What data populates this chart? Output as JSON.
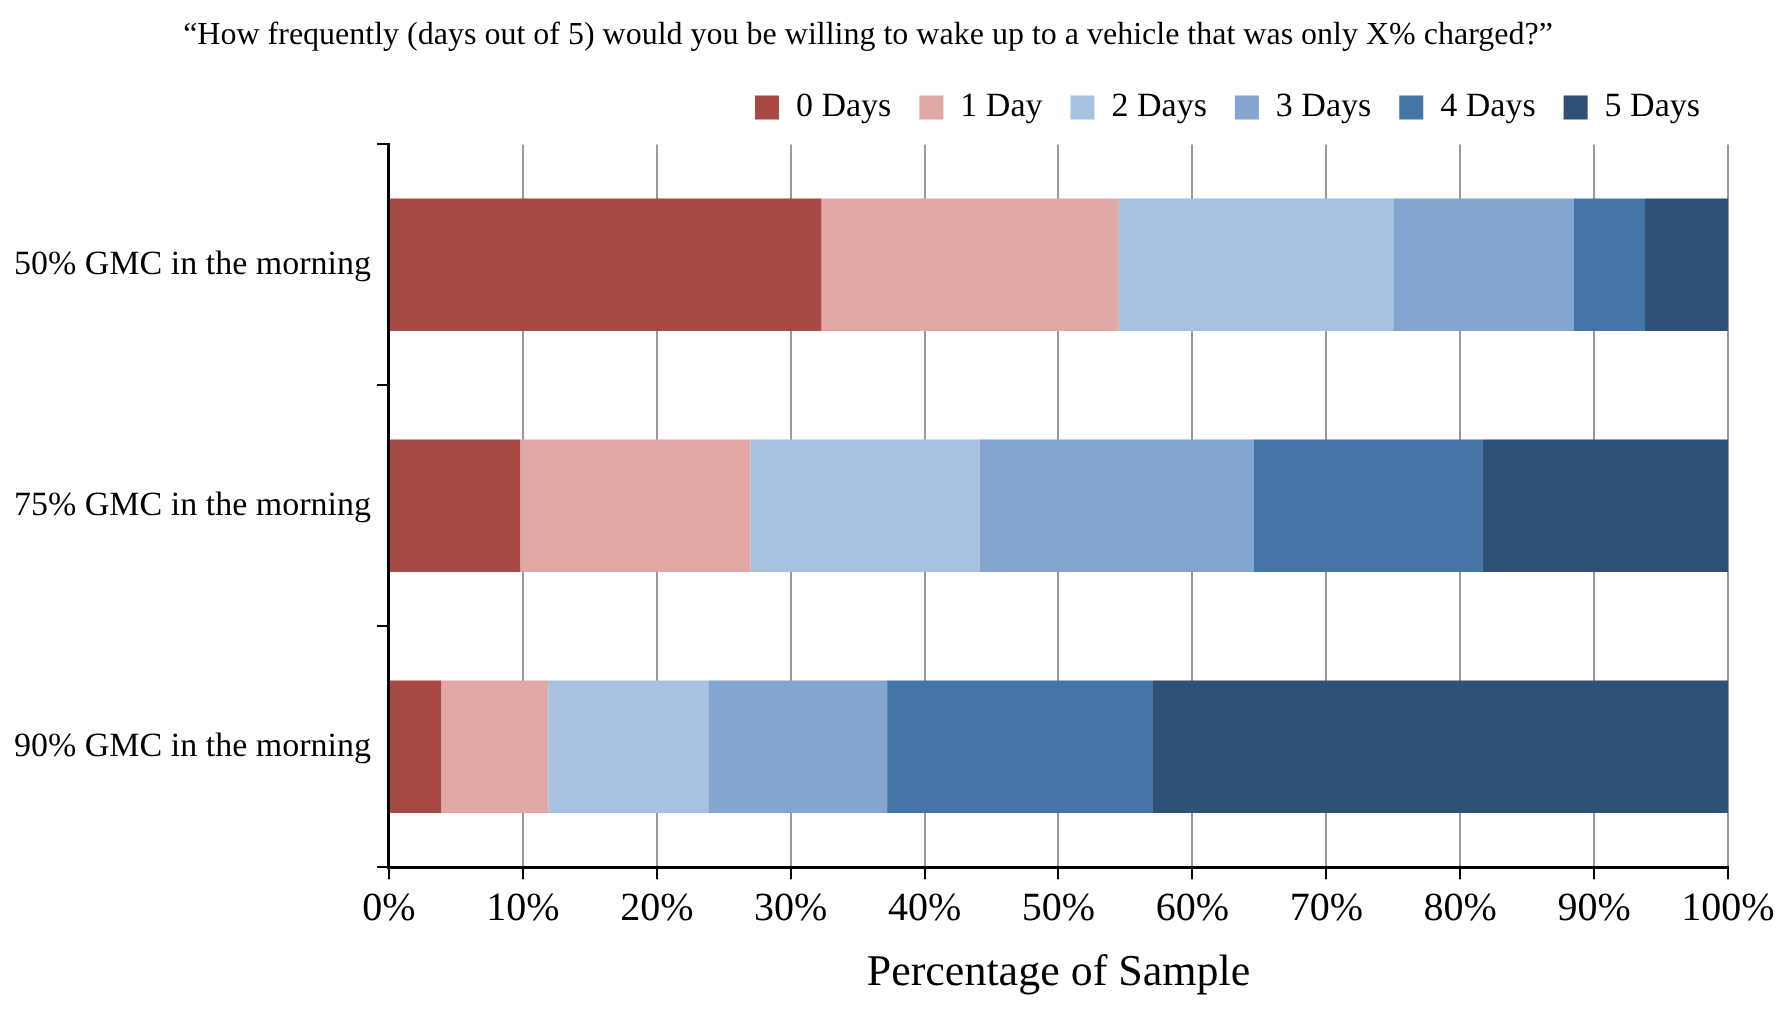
{
  "chart_data": {
    "type": "bar",
    "orientation": "horizontal",
    "stacked": true,
    "title": "“How frequently (days out of 5) would you be willing to wake up to a vehicle that was only X% charged?”",
    "xlabel": "Percentage of Sample",
    "categories": [
      "50% GMC in the morning",
      "75% GMC in the morning",
      "90% GMC in the morning"
    ],
    "series": [
      {
        "name": "0 Days",
        "color": "#a84a43",
        "values": [
          32.3,
          9.8,
          3.9
        ]
      },
      {
        "name": "1 Day",
        "color": "#e2a8a6",
        "values": [
          22.2,
          17.2,
          8.0
        ]
      },
      {
        "name": "2 Days",
        "color": "#a7c1e0",
        "values": [
          20.5,
          17.1,
          12.0
        ]
      },
      {
        "name": "3 Days",
        "color": "#84a5d0",
        "values": [
          13.5,
          20.5,
          13.3
        ]
      },
      {
        "name": "4 Days",
        "color": "#4574a6",
        "values": [
          5.3,
          17.1,
          19.8
        ]
      },
      {
        "name": "5 Days",
        "color": "#2f5175",
        "values": [
          6.2,
          18.3,
          43.0
        ]
      }
    ],
    "xlim": [
      0,
      100
    ],
    "xticks": [
      {
        "value": 0,
        "label": "0%"
      },
      {
        "value": 10,
        "label": "10%"
      },
      {
        "value": 20,
        "label": "20%"
      },
      {
        "value": 30,
        "label": "30%"
      },
      {
        "value": 40,
        "label": "40%"
      },
      {
        "value": 50,
        "label": "50%"
      },
      {
        "value": 60,
        "label": "60%"
      },
      {
        "value": 70,
        "label": "70%"
      },
      {
        "value": 80,
        "label": "80%"
      },
      {
        "value": 90,
        "label": "90%"
      },
      {
        "value": 100,
        "label": "100%"
      }
    ],
    "grid": "x",
    "legend": "top right"
  }
}
